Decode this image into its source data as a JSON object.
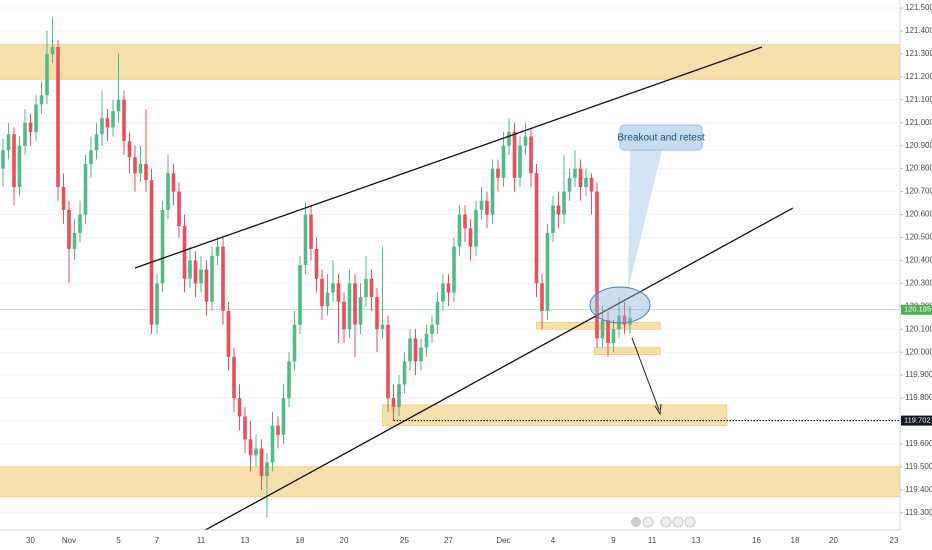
{
  "chart_data": {
    "type": "candlestick",
    "annotation": "Breakout and retest",
    "categories": [
      null,
      null,
      null,
      null,
      null,
      "30",
      null,
      null,
      null,
      null,
      null,
      null,
      "Nov",
      null,
      null,
      null,
      null,
      null,
      null,
      null,
      null,
      "5",
      null,
      null,
      null,
      null,
      null,
      null,
      "7",
      null,
      null,
      null,
      null,
      null,
      null,
      null,
      "11",
      null,
      null,
      null,
      null,
      null,
      null,
      null,
      "13",
      null,
      null,
      null,
      null,
      null,
      null,
      null,
      null,
      null,
      "18",
      null,
      null,
      null,
      null,
      null,
      null,
      null,
      "20",
      null,
      null,
      null,
      null,
      null,
      null,
      null,
      null,
      null,
      null,
      "25",
      null,
      null,
      null,
      null,
      null,
      null,
      null,
      "27",
      null,
      null,
      null,
      null,
      null,
      null,
      null,
      null,
      null,
      "Dec",
      null,
      null,
      null,
      null,
      null,
      null,
      null,
      null,
      "4",
      null,
      null,
      null,
      null,
      null,
      null,
      null,
      null,
      null,
      null,
      "9",
      null,
      null,
      null,
      null,
      null,
      null,
      "11",
      null,
      null,
      null,
      null,
      null,
      null,
      null,
      "13",
      null,
      null,
      null,
      null,
      null,
      null,
      null,
      null,
      null,
      null,
      "16",
      null,
      null,
      null,
      null,
      null,
      null,
      "18",
      null,
      null,
      null,
      null,
      null,
      null,
      "20",
      null,
      null,
      null,
      null,
      null,
      null,
      null,
      null,
      null,
      null,
      "23",
      null
    ],
    "ohlc": [
      [
        120.8,
        120.93,
        120.72,
        120.88
      ],
      [
        120.88,
        121.0,
        120.84,
        120.95
      ],
      [
        120.95,
        120.98,
        120.64,
        120.72
      ],
      [
        120.72,
        120.94,
        120.68,
        120.9
      ],
      [
        120.9,
        121.06,
        120.86,
        121.0
      ],
      [
        121.0,
        121.04,
        120.9,
        120.96
      ],
      [
        120.96,
        121.12,
        120.92,
        121.08
      ],
      [
        121.08,
        121.18,
        121.04,
        121.12
      ],
      [
        121.12,
        121.4,
        121.08,
        121.3
      ],
      [
        121.3,
        121.46,
        121.26,
        121.33
      ],
      [
        121.33,
        121.36,
        120.66,
        120.72
      ],
      [
        120.72,
        120.78,
        120.56,
        120.62
      ],
      [
        120.62,
        120.66,
        120.3,
        120.45
      ],
      [
        120.45,
        120.58,
        120.4,
        120.52
      ],
      [
        120.52,
        120.66,
        120.48,
        120.6
      ],
      [
        120.6,
        120.86,
        120.56,
        120.82
      ],
      [
        120.82,
        120.94,
        120.76,
        120.88
      ],
      [
        120.88,
        121.0,
        120.84,
        120.95
      ],
      [
        120.95,
        121.14,
        120.9,
        121.02
      ],
      [
        121.02,
        121.06,
        120.92,
        120.98
      ],
      [
        120.98,
        121.1,
        120.94,
        121.05
      ],
      [
        121.05,
        121.3,
        121.0,
        121.1
      ],
      [
        121.1,
        121.14,
        120.86,
        120.92
      ],
      [
        120.92,
        120.96,
        120.78,
        120.85
      ],
      [
        120.85,
        120.9,
        120.7,
        120.78
      ],
      [
        120.78,
        120.9,
        120.74,
        120.82
      ],
      [
        120.82,
        121.06,
        120.7,
        120.75
      ],
      [
        120.75,
        120.8,
        120.08,
        120.12
      ],
      [
        120.12,
        120.34,
        120.08,
        120.3
      ],
      [
        120.3,
        120.66,
        120.26,
        120.62
      ],
      [
        120.62,
        120.86,
        120.58,
        120.78
      ],
      [
        120.78,
        120.82,
        120.64,
        120.7
      ],
      [
        120.7,
        120.74,
        120.5,
        120.55
      ],
      [
        120.55,
        120.6,
        120.26,
        120.32
      ],
      [
        120.32,
        120.46,
        120.28,
        120.4
      ],
      [
        120.4,
        120.44,
        120.24,
        120.3
      ],
      [
        120.3,
        120.42,
        120.26,
        120.36
      ],
      [
        120.36,
        120.4,
        120.16,
        120.22
      ],
      [
        120.22,
        120.46,
        120.18,
        120.42
      ],
      [
        120.42,
        120.5,
        120.38,
        120.46
      ],
      [
        120.46,
        120.5,
        120.12,
        120.18
      ],
      [
        120.18,
        120.22,
        119.92,
        119.98
      ],
      [
        119.98,
        120.02,
        119.74,
        119.8
      ],
      [
        119.8,
        119.86,
        119.66,
        119.72
      ],
      [
        119.72,
        119.76,
        119.56,
        119.62
      ],
      [
        119.62,
        119.7,
        119.48,
        119.55
      ],
      [
        119.55,
        119.64,
        119.5,
        119.58
      ],
      [
        119.58,
        119.62,
        119.4,
        119.46
      ],
      [
        119.46,
        119.56,
        119.28,
        119.52
      ],
      [
        119.52,
        119.74,
        119.48,
        119.68
      ],
      [
        119.68,
        119.72,
        119.58,
        119.64
      ],
      [
        119.64,
        119.86,
        119.6,
        119.8
      ],
      [
        119.8,
        120.0,
        119.76,
        119.96
      ],
      [
        119.96,
        120.18,
        119.92,
        120.12
      ],
      [
        120.12,
        120.42,
        120.08,
        120.38
      ],
      [
        120.38,
        120.65,
        120.34,
        120.6
      ],
      [
        120.6,
        120.64,
        120.4,
        120.45
      ],
      [
        120.45,
        120.5,
        120.26,
        120.32
      ],
      [
        120.32,
        120.36,
        120.14,
        120.2
      ],
      [
        120.2,
        120.34,
        120.16,
        120.26
      ],
      [
        120.26,
        120.4,
        120.22,
        120.3
      ],
      [
        120.3,
        120.34,
        120.04,
        120.22
      ],
      [
        120.22,
        120.26,
        120.04,
        120.1
      ],
      [
        120.1,
        120.36,
        120.06,
        120.3
      ],
      [
        120.3,
        120.34,
        119.98,
        120.12
      ],
      [
        120.12,
        120.3,
        120.08,
        120.24
      ],
      [
        120.24,
        120.42,
        120.2,
        120.32
      ],
      [
        120.32,
        120.36,
        120.18,
        120.24
      ],
      [
        120.24,
        120.28,
        120.0,
        120.1
      ],
      [
        120.1,
        120.46,
        120.06,
        120.12
      ],
      [
        120.12,
        120.16,
        119.74,
        119.8
      ],
      [
        119.8,
        119.86,
        119.7,
        119.76
      ],
      [
        119.76,
        119.9,
        119.72,
        119.86
      ],
      [
        119.86,
        120.0,
        119.82,
        119.96
      ],
      [
        119.96,
        120.1,
        119.92,
        120.06
      ],
      [
        120.06,
        120.1,
        119.9,
        119.96
      ],
      [
        119.96,
        120.06,
        119.92,
        120.02
      ],
      [
        120.02,
        120.12,
        119.98,
        120.08
      ],
      [
        120.08,
        120.16,
        120.04,
        120.12
      ],
      [
        120.12,
        120.26,
        120.08,
        120.22
      ],
      [
        120.22,
        120.34,
        120.18,
        120.3
      ],
      [
        120.3,
        120.34,
        120.2,
        120.26
      ],
      [
        120.26,
        120.5,
        120.22,
        120.46
      ],
      [
        120.46,
        120.64,
        120.42,
        120.6
      ],
      [
        120.6,
        120.64,
        120.48,
        120.54
      ],
      [
        120.54,
        120.58,
        120.4,
        120.46
      ],
      [
        120.46,
        120.66,
        120.42,
        120.62
      ],
      [
        120.62,
        120.72,
        120.58,
        120.66
      ],
      [
        120.66,
        120.7,
        120.54,
        120.6
      ],
      [
        120.6,
        120.84,
        120.56,
        120.8
      ],
      [
        120.8,
        120.84,
        120.7,
        120.76
      ],
      [
        120.76,
        120.96,
        120.72,
        120.9
      ],
      [
        120.9,
        121.02,
        120.86,
        120.96
      ],
      [
        120.96,
        121.0,
        120.7,
        120.76
      ],
      [
        120.76,
        120.94,
        120.72,
        120.9
      ],
      [
        120.9,
        121.0,
        120.86,
        120.94
      ],
      [
        120.94,
        120.98,
        120.72,
        120.78
      ],
      [
        120.78,
        120.82,
        120.24,
        120.3
      ],
      [
        120.3,
        120.34,
        120.1,
        120.18
      ],
      [
        120.18,
        120.56,
        120.14,
        120.52
      ],
      [
        120.52,
        120.68,
        120.48,
        120.64
      ],
      [
        120.64,
        120.7,
        120.54,
        120.6
      ],
      [
        120.6,
        120.86,
        120.56,
        120.7
      ],
      [
        120.7,
        120.8,
        120.66,
        120.76
      ],
      [
        120.76,
        120.88,
        120.72,
        120.8
      ],
      [
        120.8,
        120.84,
        120.66,
        120.72
      ],
      [
        120.72,
        120.8,
        120.68,
        120.76
      ],
      [
        120.76,
        120.78,
        120.6,
        120.7
      ],
      [
        120.7,
        120.74,
        120.02,
        120.06
      ],
      [
        120.06,
        120.2,
        120.02,
        120.14
      ],
      [
        120.14,
        120.18,
        119.98,
        120.04
      ],
      [
        120.04,
        120.14,
        120.0,
        120.1
      ],
      [
        120.1,
        120.24,
        120.06,
        120.16
      ],
      [
        120.16,
        120.22,
        120.08,
        120.12
      ],
      [
        120.12,
        120.2,
        120.08,
        120.15
      ],
      null,
      null,
      null,
      null,
      null,
      null,
      null,
      null,
      null,
      null,
      null,
      null,
      null,
      null,
      null,
      null,
      null,
      null,
      null,
      null,
      null,
      null,
      null,
      null,
      null,
      null,
      null,
      null,
      null,
      null,
      null,
      null,
      null,
      null,
      null,
      null,
      null,
      null,
      null,
      null,
      null,
      null,
      null,
      null,
      null,
      null,
      null,
      null,
      null
    ],
    "up_color": "#53b987",
    "down_color": "#eb4d5c",
    "ylim": [
      119.225,
      121.535
    ],
    "yticks": [
      {
        "value": 119.3,
        "label": "119.300"
      },
      {
        "value": 119.4,
        "label": "119.400"
      },
      {
        "value": 119.5,
        "label": "119.500"
      },
      {
        "value": 119.6,
        "label": "119.600"
      },
      {
        "value": 119.7,
        "label": "119.700"
      },
      {
        "value": 119.8,
        "label": "119.800"
      },
      {
        "value": 119.9,
        "label": "119.900"
      },
      {
        "value": 120.0,
        "label": "120.000"
      },
      {
        "value": 120.1,
        "label": "120.100"
      },
      {
        "value": 120.2,
        "label": "120.200"
      },
      {
        "value": 120.3,
        "label": "120.300"
      },
      {
        "value": 120.4,
        "label": "120.400"
      },
      {
        "value": 120.5,
        "label": "120.500"
      },
      {
        "value": 120.6,
        "label": "120.600"
      },
      {
        "value": 120.7,
        "label": "120.700"
      },
      {
        "value": 120.8,
        "label": "120.800"
      },
      {
        "value": 120.9,
        "label": "120.900"
      },
      {
        "value": 121.0,
        "label": "121.000"
      },
      {
        "value": 121.1,
        "label": "121.100"
      },
      {
        "value": 121.2,
        "label": "121.200"
      },
      {
        "value": 121.3,
        "label": "121.300"
      },
      {
        "value": 121.4,
        "label": "121.400"
      },
      {
        "value": 121.5,
        "label": "121.500"
      }
    ],
    "zones": [
      {
        "x0": -1,
        "x1": 164,
        "y0": 121.19,
        "y1": 121.34
      },
      {
        "x0": -1,
        "x1": 164,
        "y0": 119.37,
        "y1": 119.5
      },
      {
        "x0": 69,
        "x1": 131.6,
        "y0": 119.68,
        "y1": 119.77
      },
      {
        "x0": 97,
        "x1": 119.5,
        "y0": 120.1,
        "y1": 120.13
      },
      {
        "x0": 107.5,
        "x1": 119.5,
        "y0": 119.99,
        "y1": 120.02
      }
    ],
    "zone_color": "#f3cf7f",
    "trend_lines": [
      {
        "x0": 24,
        "y0": 120.367,
        "x1": 138,
        "y1": 121.33
      },
      {
        "x0": 35.8,
        "y0": 119.212,
        "x1": 143.6,
        "y1": 120.628
      }
    ],
    "price_markers": [
      {
        "value": 120.185,
        "label": "120.185",
        "color": "#4caf50",
        "start": -1,
        "style": "solid"
      },
      {
        "value": 119.702,
        "label": "119.702",
        "color": "#131722",
        "start": 71,
        "style": "dotted"
      }
    ]
  }
}
